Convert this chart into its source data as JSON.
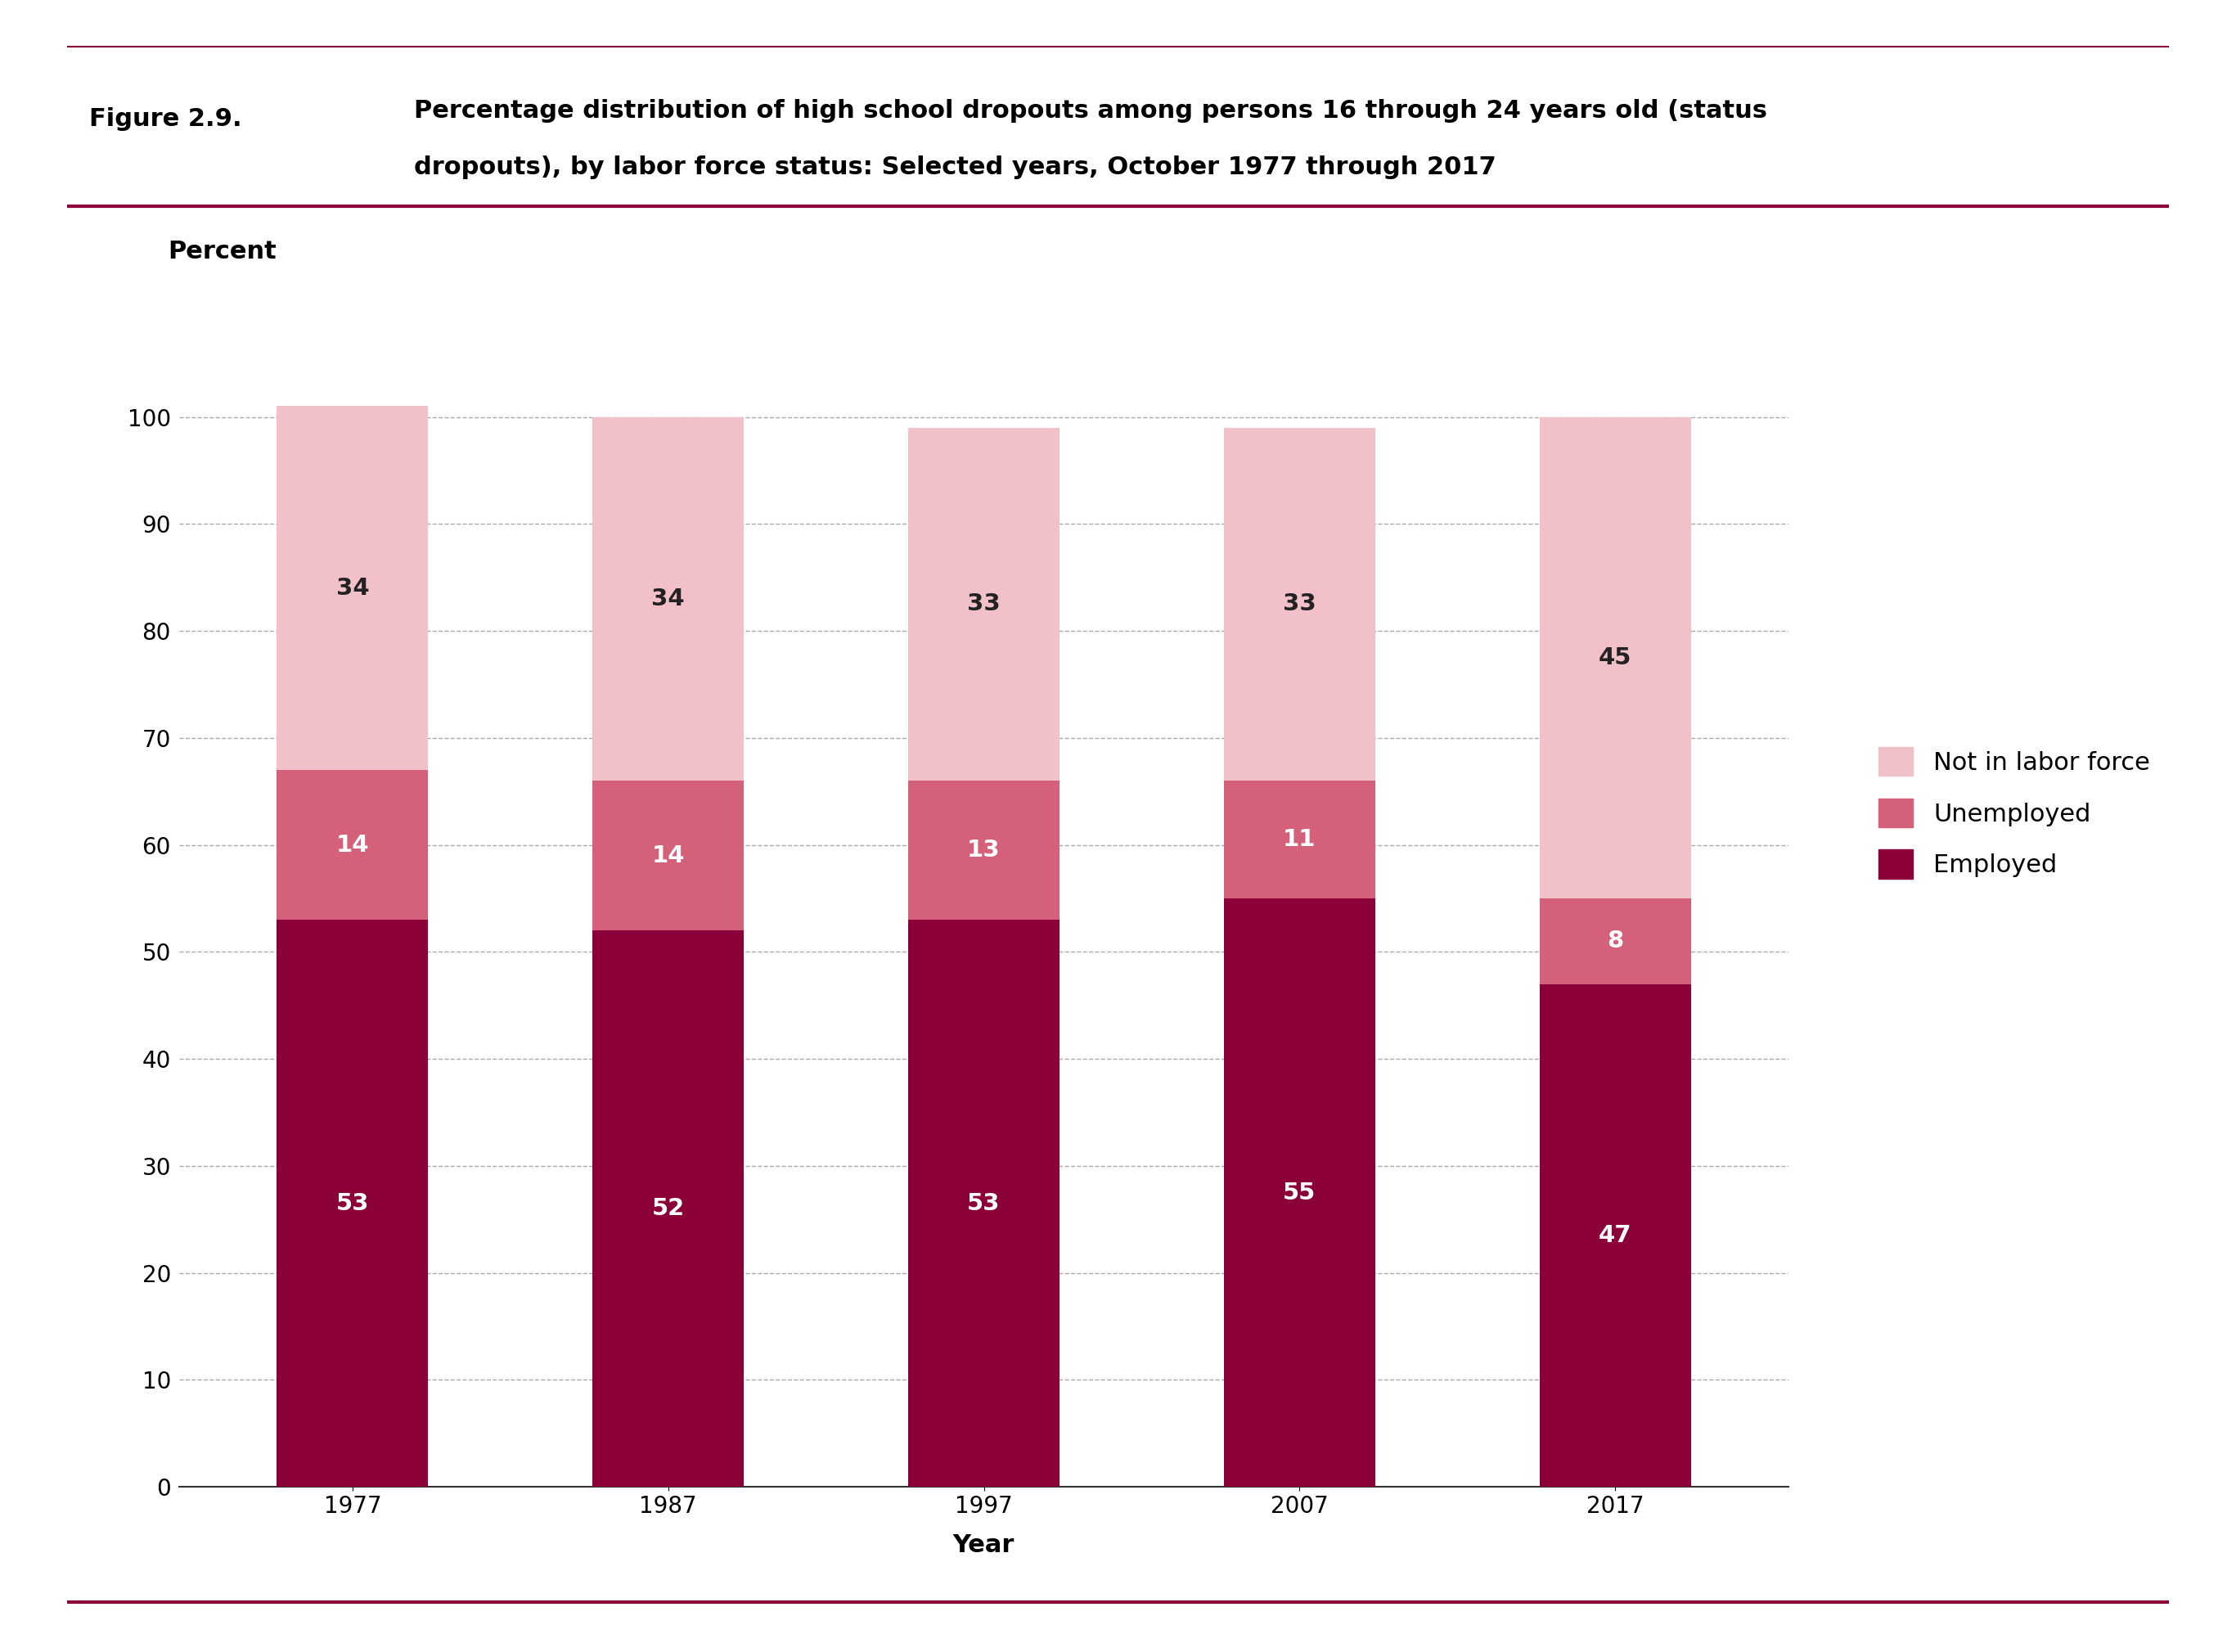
{
  "years": [
    "1977",
    "1987",
    "1997",
    "2007",
    "2017"
  ],
  "employed": [
    53,
    52,
    53,
    55,
    47
  ],
  "unemployed": [
    14,
    14,
    13,
    11,
    8
  ],
  "not_in_labor_force": [
    34,
    34,
    33,
    33,
    45
  ],
  "color_employed": "#8B0038",
  "color_unemployed": "#D4607A",
  "color_not_in_labor_force": "#F2C0C8",
  "bar_width": 0.48,
  "ylim": [
    0,
    105
  ],
  "yticks": [
    0,
    10,
    20,
    30,
    40,
    50,
    60,
    70,
    80,
    90,
    100
  ],
  "xlabel": "Year",
  "ylabel": "Percent",
  "figure_label": "Figure 2.9.",
  "title_line1": "Percentage distribution of high school dropouts among persons 16 through 24 years old (status",
  "title_line2": "dropouts), by labor force status: Selected years, October 1977 through 2017",
  "legend_labels": [
    "Not in labor force",
    "Unemployed",
    "Employed"
  ],
  "label_fontsize": 22,
  "tick_fontsize": 20,
  "value_fontsize": 21,
  "title_fontsize": 22,
  "figure_label_fontsize": 22,
  "ylabel_fontsize": 22,
  "background_color": "#ffffff",
  "grid_color": "#aaaaaa",
  "accent_color": "#8B0038"
}
